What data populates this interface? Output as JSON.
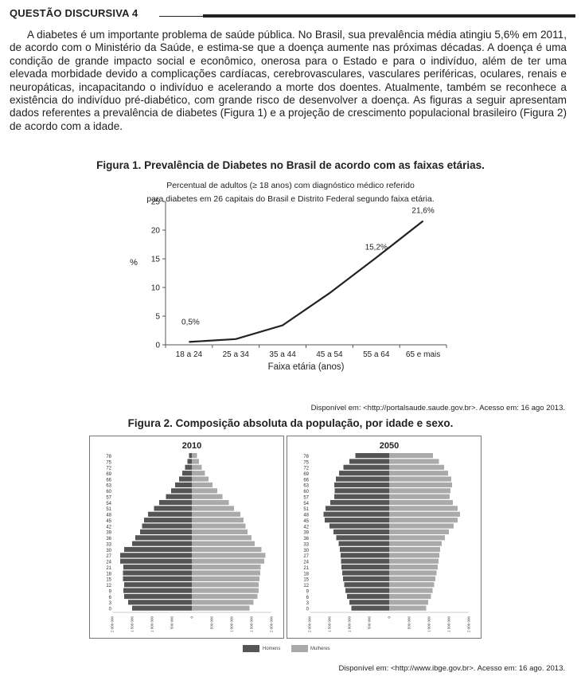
{
  "header": {
    "title": "QUESTÃO DISCURSIVA 4"
  },
  "intro": {
    "text": "A diabetes é um importante problema de saúde pública. No Brasil, sua prevalência média atingiu 5,6% em 2011, de acordo com o Ministério da Saúde, e estima-se que a doença aumente nas próximas décadas. A doença é uma condição de grande impacto social e econômico, onerosa para o Estado e para o indivíduo, além de ter uma elevada morbidade devido a complicações cardíacas, cerebrovasculares, vasculares periféricas, oculares, renais e neuropáticas, incapacitando o indivíduo e acelerando a morte dos doentes. Atualmente, também se reconhece a existência do indivíduo pré-diabético, com grande risco de desenvolver a doença. As figuras a seguir apresentam dados referentes a prevalência de diabetes (Figura 1) e a projeção de crescimento populacional brasileiro (Figura 2) de acordo com a idade."
  },
  "figure1": {
    "caption": "Figura 1. Prevalência de Diabetes no Brasil de acordo com as faixas etárias.",
    "subtitle_line1": "Percentual de adultos (≥ 18 anos) com diagnóstico médico referido",
    "subtitle_line2": "para diabetes em 26 capitais do Brasil e Distrito Federal segundo faixa etária.",
    "source": "Disponível em: <http://portalsaude.saude.gov.br>. Acesso em: 16 ago 2013."
  },
  "figure2": {
    "caption": "Figura 2. Composição absoluta da população, por idade e sexo.",
    "source": "Disponível em: <http://www.ibge.gov.br>. Acesso em: 16 ago. 2013.",
    "legend": [
      {
        "label": "Homens",
        "color": "#555555"
      },
      {
        "label": "Mulheres",
        "color": "#aaaaaa"
      }
    ]
  },
  "chart_data": [
    {
      "type": "line",
      "categories": [
        "18 a 24",
        "25 a 34",
        "35 a 44",
        "45 a 54",
        "55 a 64",
        "65 e mais"
      ],
      "values": [
        0.5,
        1.0,
        3.4,
        9.0,
        15.2,
        21.6
      ],
      "data_labels": [
        {
          "category": "18 a 24",
          "text": "0,5%"
        },
        {
          "category": "55 a 64",
          "text": "15,2%"
        },
        {
          "category": "65 e mais",
          "text": "21,6%"
        }
      ],
      "xlabel": "Faixa etária (anos)",
      "ylabel": "%",
      "ylim": [
        0,
        25
      ],
      "yticks": [
        0,
        5,
        10,
        15,
        20,
        25
      ],
      "line_color": "#222222"
    },
    {
      "type": "bar",
      "title": "2010",
      "orientation": "horizontal",
      "age_ticks": [
        "0",
        "3",
        "6",
        "9",
        "12",
        "15",
        "18",
        "21",
        "24",
        "27",
        "30",
        "33",
        "36",
        "39",
        "42",
        "45",
        "48",
        "51",
        "54",
        "57",
        "60",
        "63",
        "66",
        "69",
        "72",
        "75",
        "78"
      ],
      "x_ticks": [
        "2 000 000",
        "1 500 000",
        "1 000 000",
        "500 000",
        "0",
        "500 000",
        "1 000 000",
        "1 500 000",
        "2 000 000"
      ],
      "xlim": [
        -2000000,
        2000000
      ],
      "ages": [
        0,
        3,
        6,
        9,
        12,
        15,
        18,
        21,
        24,
        27,
        30,
        33,
        36,
        39,
        42,
        45,
        48,
        51,
        54,
        57,
        60,
        63,
        66,
        69,
        72,
        75,
        78
      ],
      "series": [
        {
          "name": "Homens",
          "values": [
            1500000,
            1600000,
            1700000,
            1720000,
            1700000,
            1730000,
            1730000,
            1720000,
            1800000,
            1800000,
            1700000,
            1500000,
            1420000,
            1300000,
            1250000,
            1200000,
            1100000,
            950000,
            820000,
            650000,
            520000,
            420000,
            320000,
            240000,
            170000,
            110000,
            70000
          ]
        },
        {
          "name": "Mulheres",
          "values": [
            1450000,
            1550000,
            1650000,
            1680000,
            1680000,
            1700000,
            1720000,
            1730000,
            1820000,
            1850000,
            1750000,
            1580000,
            1500000,
            1400000,
            1350000,
            1300000,
            1220000,
            1060000,
            930000,
            770000,
            640000,
            520000,
            420000,
            330000,
            250000,
            180000,
            130000
          ]
        }
      ]
    },
    {
      "type": "bar",
      "title": "2050",
      "orientation": "horizontal",
      "age_ticks": [
        "0",
        "3",
        "6",
        "9",
        "12",
        "15",
        "18",
        "21",
        "24",
        "27",
        "30",
        "33",
        "36",
        "39",
        "42",
        "45",
        "48",
        "51",
        "54",
        "57",
        "60",
        "63",
        "66",
        "69",
        "72",
        "75",
        "78"
      ],
      "x_ticks": [
        "2 000 000",
        "1 500 000",
        "1 000 000",
        "500 000",
        "0",
        "500 000",
        "1 000 000",
        "1 500 000",
        "2 000 000"
      ],
      "xlim": [
        -2000000,
        2000000
      ],
      "ages": [
        0,
        3,
        6,
        9,
        12,
        15,
        18,
        21,
        24,
        27,
        30,
        33,
        36,
        39,
        42,
        45,
        48,
        51,
        54,
        57,
        60,
        63,
        66,
        69,
        72,
        75,
        78
      ],
      "series": [
        {
          "name": "Homens",
          "values": [
            950000,
            1000000,
            1060000,
            1100000,
            1130000,
            1160000,
            1180000,
            1200000,
            1210000,
            1220000,
            1240000,
            1270000,
            1330000,
            1400000,
            1500000,
            1620000,
            1650000,
            1600000,
            1480000,
            1380000,
            1370000,
            1380000,
            1340000,
            1260000,
            1150000,
            1000000,
            850000
          ]
        },
        {
          "name": "Mulheres",
          "values": [
            930000,
            980000,
            1050000,
            1090000,
            1130000,
            1160000,
            1190000,
            1220000,
            1240000,
            1260000,
            1280000,
            1320000,
            1400000,
            1500000,
            1620000,
            1720000,
            1780000,
            1720000,
            1600000,
            1520000,
            1540000,
            1580000,
            1560000,
            1480000,
            1380000,
            1250000,
            1100000
          ]
        }
      ]
    }
  ]
}
